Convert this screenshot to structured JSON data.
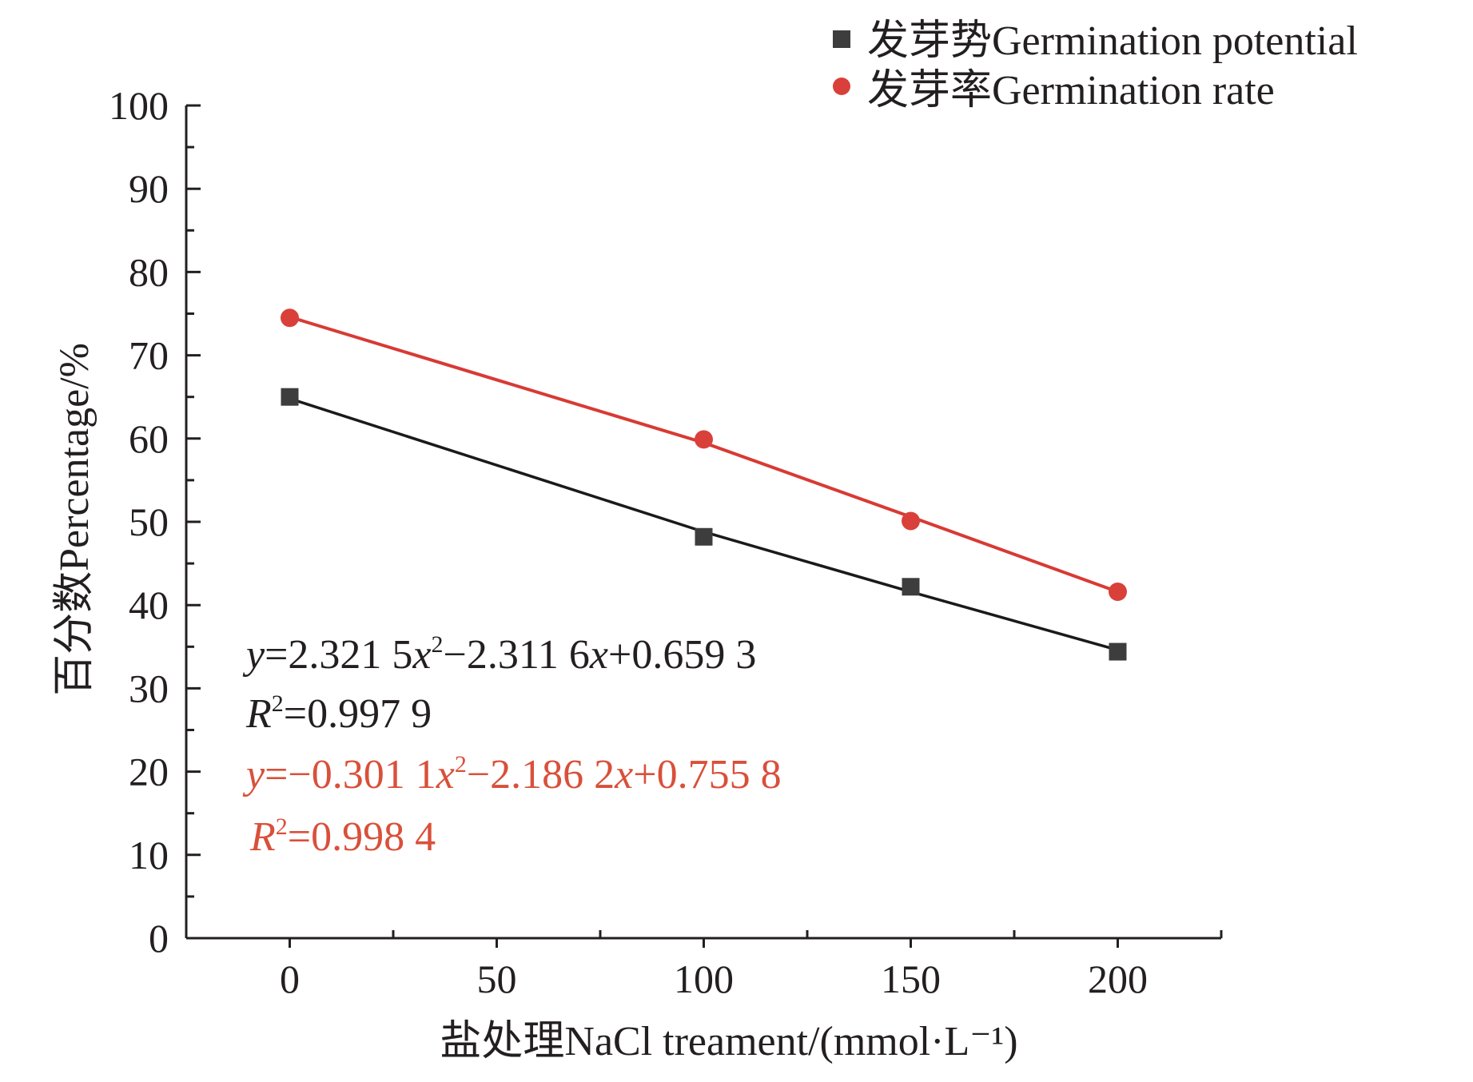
{
  "chart_data": {
    "type": "line",
    "xlabel": "盐处理NaCl treament/(mmol·L⁻¹)",
    "ylabel": "百分数Percentage/%",
    "xlim": [
      -25,
      225
    ],
    "ylim": [
      0,
      100
    ],
    "x_ticks": [
      0,
      50,
      100,
      150,
      200
    ],
    "y_ticks": [
      0,
      10,
      20,
      30,
      40,
      50,
      60,
      70,
      80,
      90,
      100
    ],
    "legend_position": "top-right",
    "series": [
      {
        "name": "发芽势Germination potential",
        "marker": "square",
        "color": "#3d3d3d",
        "line_color": "#1a1a1a",
        "x": [
          0,
          100,
          150,
          200
        ],
        "y": [
          65.0,
          48.2,
          42.2,
          34.4
        ],
        "fit_y": [
          64.8,
          48.8,
          41.6,
          34.6
        ]
      },
      {
        "name": "发芽率Germination rate",
        "marker": "circle",
        "color": "#d9403a",
        "line_color": "#d83a34",
        "x": [
          0,
          100,
          150,
          200
        ],
        "y": [
          74.5,
          59.9,
          50.1,
          41.6
        ],
        "fit_y": [
          74.6,
          59.5,
          50.6,
          41.6
        ]
      }
    ],
    "equations": [
      {
        "y_var": "y",
        "eq_rest_1": "=2.321 5",
        "x_var_1": "x",
        "sup_1": "2",
        "eq_rest_2": "−2.311 6",
        "x_var_2": "x",
        "eq_rest_3": "+0.659 3",
        "r_var": "R",
        "r_sup": "2",
        "r_value": "=0.997 9",
        "color": "#231f20"
      },
      {
        "y_var": "y",
        "eq_rest_1": "=−0.301 1",
        "x_var_1": "x",
        "sup_1": "2",
        "eq_rest_2": "−2.186 2",
        "x_var_2": "x",
        "eq_rest_3": "+0.755 8",
        "r_var": "R",
        "r_sup": "2",
        "r_value": "=0.998 4",
        "color": "#d9503a"
      }
    ]
  }
}
